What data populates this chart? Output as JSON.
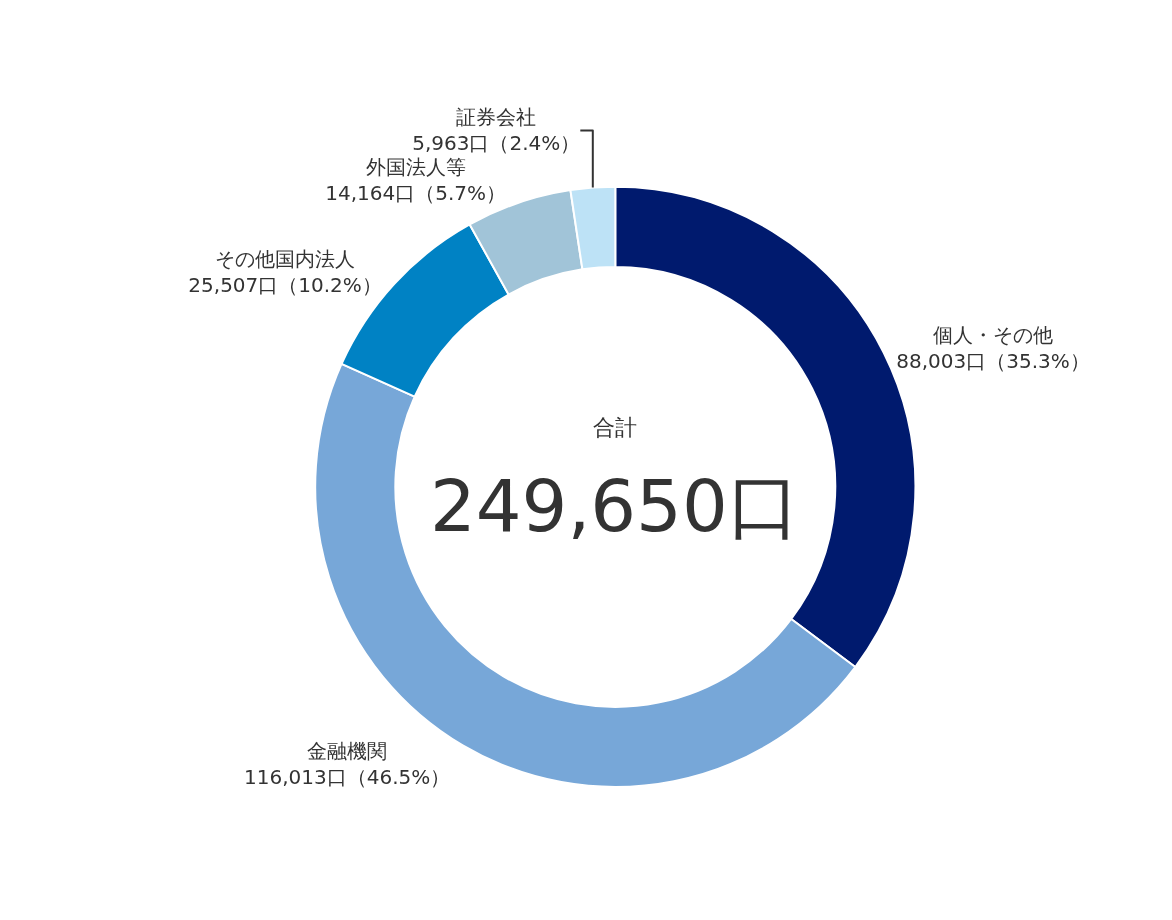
{
  "chart_data": {
    "type": "donut",
    "categories": [
      "個人・その他",
      "金融機関",
      "その他国内法人",
      "外国法人等",
      "証券会社"
    ],
    "values": [
      88003,
      116013,
      25507,
      14164,
      5963
    ],
    "value_labels": [
      "88,003口（35.3%）",
      "116,013口（46.5%）",
      "25,507口（10.2%）",
      "14,164口（5.7%）",
      "5,963口（2.4%）"
    ],
    "colors": [
      "#001a6e",
      "#77a7d8",
      "#0082c4",
      "#a1c4d8",
      "#bde2f6"
    ],
    "annotations": [
      "合計",
      "249,650口"
    ],
    "legend": false
  }
}
